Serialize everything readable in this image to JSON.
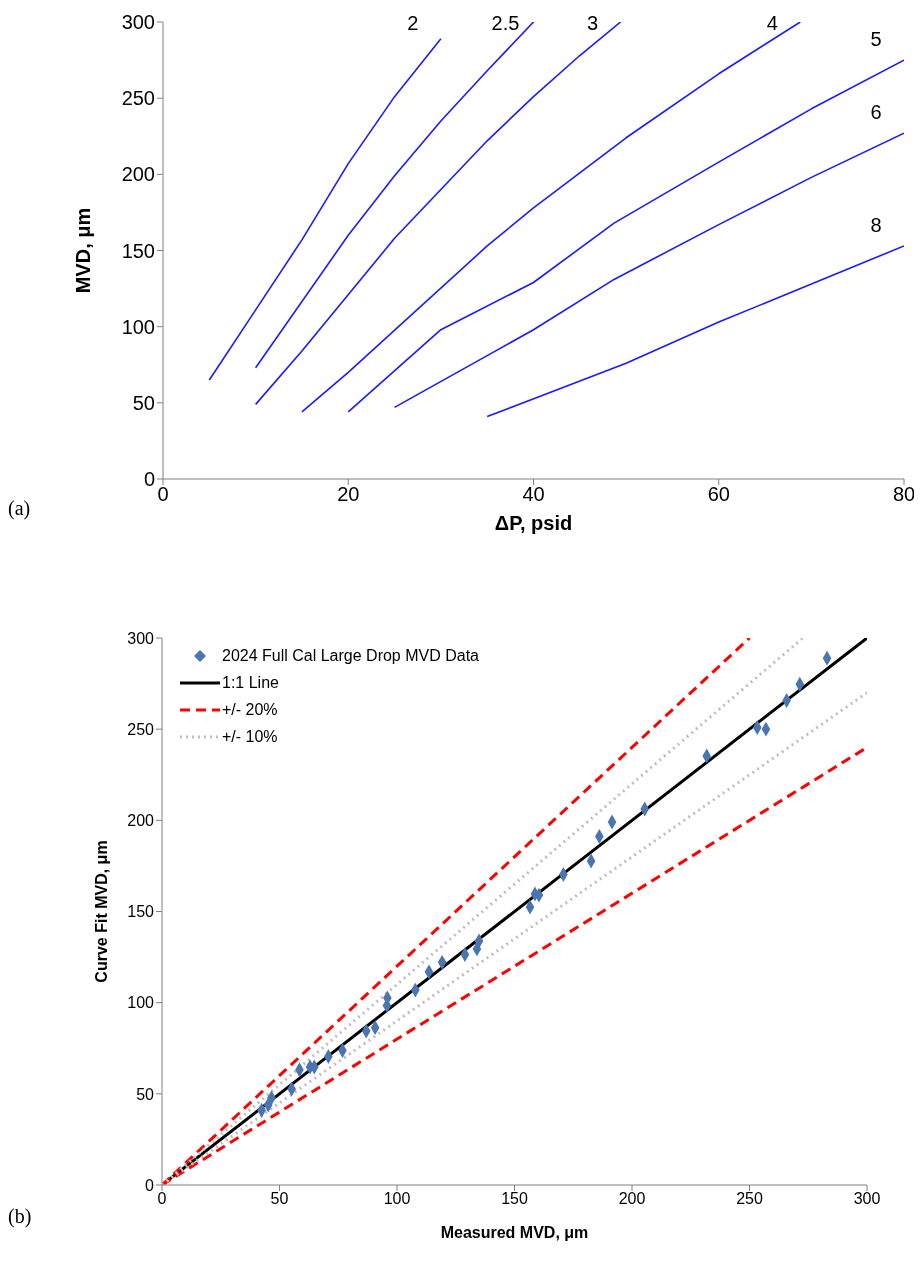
{
  "chart_data": [
    {
      "type": "line",
      "xlabel": "ΔP, psid",
      "ylabel": "MVD, μm",
      "xlim": [
        0,
        80
      ],
      "xticks": [
        0,
        20,
        40,
        60,
        80
      ],
      "ylim": [
        0,
        300
      ],
      "yticks": [
        0,
        50,
        100,
        150,
        200,
        250,
        300
      ],
      "marker": "none",
      "annotations": [
        "(a)"
      ],
      "series": [
        {
          "name": "2",
          "color": "#1a1aff",
          "x": [
            5,
            15,
            20,
            25,
            30
          ],
          "values": [
            65,
            157,
            207,
            251,
            289
          ]
        },
        {
          "name": "2.5",
          "color": "#1a1aff",
          "x": [
            10,
            20,
            25,
            30,
            35,
            40
          ],
          "values": [
            73,
            160,
            199,
            235,
            268,
            300
          ]
        },
        {
          "name": "3",
          "color": "#1a1aff",
          "x": [
            10,
            15,
            25,
            35,
            40,
            45,
            49.4
          ],
          "values": [
            49,
            84,
            158,
            222,
            251,
            278,
            300
          ]
        },
        {
          "name": "4",
          "color": "#1a1aff",
          "x": [
            15,
            20,
            35,
            40,
            50,
            60,
            68.8
          ],
          "values": [
            44,
            70,
            153,
            178,
            224,
            266,
            300
          ]
        },
        {
          "name": "5",
          "color": "#1a1aff",
          "x": [
            20,
            30,
            40,
            48.7,
            60,
            70,
            80
          ],
          "values": [
            44,
            98,
            129,
            168,
            208,
            243,
            275
          ]
        },
        {
          "name": "6",
          "color": "#1a1aff",
          "x": [
            25,
            35,
            40,
            48.7,
            60,
            70,
            80
          ],
          "values": [
            47,
            81,
            98,
            131,
            167,
            198,
            227
          ]
        },
        {
          "name": "8",
          "color": "#1a1aff",
          "x": [
            35,
            50,
            60,
            70,
            80
          ],
          "values": [
            41,
            76,
            103,
            128,
            153
          ]
        }
      ]
    },
    {
      "type": "scatter",
      "xlabel": "Measured MVD, μm",
      "ylabel": "Curve Fit MVD, μm",
      "xlim": [
        0,
        300
      ],
      "xticks": [
        0,
        50,
        100,
        150,
        200,
        250,
        300
      ],
      "ylim": [
        0,
        300
      ],
      "yticks": [
        0,
        50,
        100,
        150,
        200,
        250,
        300
      ],
      "legend": "top left",
      "annotations": [
        "(b)"
      ],
      "series": [
        {
          "name": "2024 Full Cal Large Drop MVD Data",
          "marker": "diamond",
          "color": "#4a76b0",
          "x": [
            283,
            271.4,
            265.8,
            253.3,
            257,
            231.8,
            205.4,
            191.5,
            186.1,
            182.6,
            170.8,
            160.4,
            158.7,
            156.6,
            134.9,
            134,
            128.9,
            119.2,
            113.6,
            107.8,
            95.9,
            95.7,
            90.7,
            86.9,
            76.8,
            70.8,
            64.8,
            63,
            58.5,
            55.2,
            46.6,
            45.2,
            42.4
          ],
          "values": [
            288.9,
            274.6,
            265.7,
            250.9,
            250,
            235.3,
            206.2,
            199.1,
            191.1,
            177.7,
            170.3,
            159,
            159.6,
            152.4,
            133.8,
            129.5,
            126.4,
            122.1,
            116.9,
            106.9,
            102.6,
            98.4,
            86.3,
            84.4,
            73.8,
            70.5,
            64.7,
            64.7,
            63.2,
            52.6,
            47.8,
            43.9,
            41
          ]
        },
        {
          "name": "1:1 Line",
          "type": "line",
          "marker": "none",
          "line_style": "solid",
          "color": "#000000",
          "x": [
            0,
            300
          ],
          "values": [
            0,
            300
          ]
        },
        {
          "name": "+/- 20%",
          "type": "line",
          "marker": "none",
          "line_style": "dashed",
          "color": "#ff0000",
          "x": [
            0,
            250
          ],
          "values": [
            0,
            300
          ]
        },
        {
          "type": "line",
          "marker": "none",
          "line_style": "dashed",
          "color": "#ff0000",
          "x": [
            0,
            300
          ],
          "values": [
            0,
            240
          ]
        },
        {
          "name": "+/- 10%",
          "type": "line",
          "marker": "none",
          "line_style": "dotted",
          "color": "#bfbfbf",
          "x": [
            0,
            272.7
          ],
          "values": [
            0,
            300
          ]
        },
        {
          "type": "line",
          "marker": "none",
          "line_style": "dotted",
          "color": "#bfbfbf",
          "x": [
            0,
            300
          ],
          "values": [
            0,
            270
          ]
        }
      ]
    }
  ]
}
